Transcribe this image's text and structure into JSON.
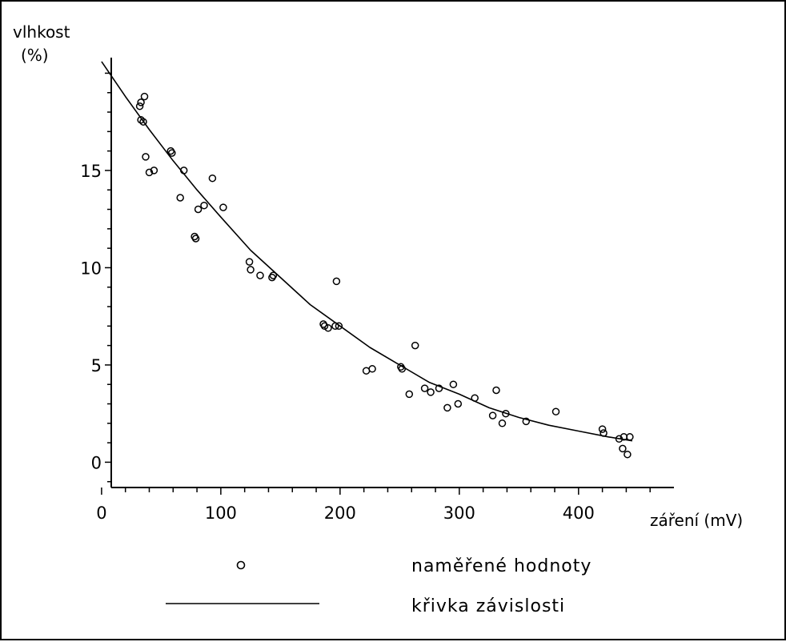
{
  "chart_data": {
    "type": "scatter",
    "title": "",
    "ylabel_line1": "vlhkost",
    "ylabel_line2": "(%)",
    "xlabel": "záření (mV)",
    "xlim": [
      -10,
      480
    ],
    "ylim": [
      -1.3,
      20.8
    ],
    "xticks": [
      0,
      100,
      200,
      300,
      400
    ],
    "xtick_labels": [
      "0",
      "100",
      "200",
      "300",
      "400"
    ],
    "yticks": [
      0,
      5,
      10,
      15
    ],
    "ytick_labels": [
      "0",
      "5",
      "10",
      "15"
    ],
    "grid": false,
    "legend_position": "bottom",
    "series": [
      {
        "name": "naměřené hodnoty",
        "kind": "points",
        "marker": "circle",
        "color": "#000000",
        "points": [
          [
            32,
            18.3
          ],
          [
            33,
            18.5
          ],
          [
            36,
            18.8
          ],
          [
            33,
            17.6
          ],
          [
            35,
            17.5
          ],
          [
            37,
            15.7
          ],
          [
            40,
            14.9
          ],
          [
            44,
            15.0
          ],
          [
            58,
            16.0
          ],
          [
            59,
            15.9
          ],
          [
            66,
            13.6
          ],
          [
            69,
            15.0
          ],
          [
            78,
            11.6
          ],
          [
            79,
            11.5
          ],
          [
            81,
            13.0
          ],
          [
            86,
            13.2
          ],
          [
            93,
            14.6
          ],
          [
            102,
            13.1
          ],
          [
            124,
            10.3
          ],
          [
            125,
            9.9
          ],
          [
            133,
            9.6
          ],
          [
            143,
            9.5
          ],
          [
            144,
            9.6
          ],
          [
            186,
            7.1
          ],
          [
            187,
            7.0
          ],
          [
            190,
            6.9
          ],
          [
            196,
            7.0
          ],
          [
            197,
            9.3
          ],
          [
            199,
            7.0
          ],
          [
            222,
            4.7
          ],
          [
            227,
            4.8
          ],
          [
            251,
            4.9
          ],
          [
            252,
            4.8
          ],
          [
            258,
            3.5
          ],
          [
            263,
            6.0
          ],
          [
            271,
            3.8
          ],
          [
            276,
            3.6
          ],
          [
            283,
            3.8
          ],
          [
            290,
            2.8
          ],
          [
            295,
            4.0
          ],
          [
            299,
            3.0
          ],
          [
            313,
            3.3
          ],
          [
            328,
            2.4
          ],
          [
            331,
            3.7
          ],
          [
            336,
            2.0
          ],
          [
            339,
            2.5
          ],
          [
            356,
            2.1
          ],
          [
            381,
            2.6
          ],
          [
            420,
            1.7
          ],
          [
            421,
            1.5
          ],
          [
            434,
            1.2
          ],
          [
            437,
            0.7
          ],
          [
            438,
            1.3
          ],
          [
            441,
            0.4
          ],
          [
            443,
            1.3
          ]
        ]
      },
      {
        "name": "křivka závislosti",
        "kind": "line",
        "color": "#000000",
        "points": [
          [
            0,
            20.6
          ],
          [
            20,
            18.8
          ],
          [
            40,
            17.1
          ],
          [
            60,
            15.5
          ],
          [
            80,
            14.0
          ],
          [
            100,
            12.6
          ],
          [
            125,
            10.9
          ],
          [
            150,
            9.5
          ],
          [
            175,
            8.1
          ],
          [
            200,
            7.0
          ],
          [
            225,
            5.9
          ],
          [
            250,
            5.0
          ],
          [
            275,
            4.1
          ],
          [
            300,
            3.5
          ],
          [
            325,
            2.8
          ],
          [
            350,
            2.3
          ],
          [
            375,
            1.9
          ],
          [
            400,
            1.6
          ],
          [
            425,
            1.3
          ],
          [
            445,
            1.1
          ]
        ]
      }
    ]
  }
}
